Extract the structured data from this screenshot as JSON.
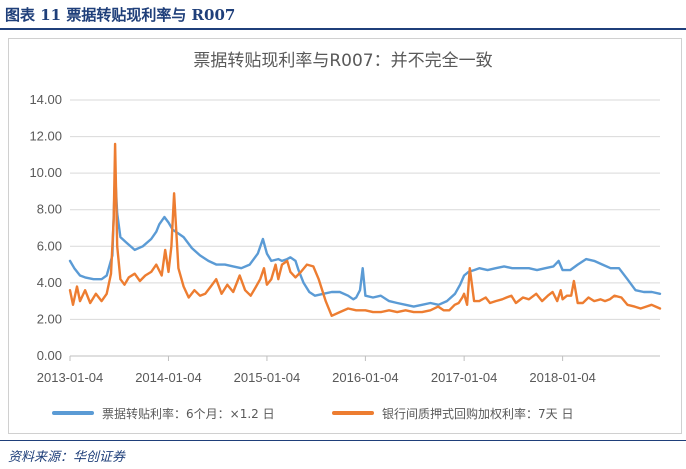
{
  "figure": {
    "title": "图表 11 票据转贴现利率与 R007",
    "source": "资料来源：华创证券"
  },
  "colors": {
    "header": "#1f3f7a",
    "series_blue": "#5b9bd5",
    "series_orange": "#ed7d31",
    "axis_text": "#595959",
    "grid": "#d9d9d9"
  },
  "chart_data": {
    "type": "line",
    "title": "票据转贴现利率与R007：并不完全一致",
    "xlabel": "",
    "ylabel": "",
    "ylim": [
      0,
      14
    ],
    "yticks": [
      "0.00",
      "2.00",
      "4.00",
      "6.00",
      "8.00",
      "10.00",
      "12.00",
      "14.00"
    ],
    "xlim": [
      "2013-01-04",
      "2018-12-31"
    ],
    "xticks": [
      "2013-01-04",
      "2014-01-04",
      "2015-01-04",
      "2016-01-04",
      "2017-01-04",
      "2018-01-04"
    ],
    "grid": "horizontal",
    "legend_position": "bottom",
    "series": [
      {
        "name": "票据转贴利率：6个月：×1.2 日",
        "color": "#5b9bd5",
        "x": [
          "2013-01-04",
          "2013-01-20",
          "2013-02-10",
          "2013-03-01",
          "2013-04-01",
          "2013-05-01",
          "2013-05-20",
          "2013-06-10",
          "2013-06-20",
          "2013-06-28",
          "2013-07-10",
          "2013-08-01",
          "2013-09-01",
          "2013-10-01",
          "2013-11-01",
          "2013-11-20",
          "2013-12-01",
          "2013-12-20",
          "2014-01-04",
          "2014-01-20",
          "2014-02-10",
          "2014-03-01",
          "2014-04-01",
          "2014-05-01",
          "2014-06-01",
          "2014-07-01",
          "2014-08-01",
          "2014-09-01",
          "2014-10-01",
          "2014-11-01",
          "2014-12-01",
          "2014-12-20",
          "2015-01-04",
          "2015-01-20",
          "2015-02-15",
          "2015-03-01",
          "2015-03-20",
          "2015-04-01",
          "2015-04-20",
          "2015-05-01",
          "2015-05-20",
          "2015-06-10",
          "2015-07-01",
          "2015-08-01",
          "2015-09-01",
          "2015-10-01",
          "2015-11-01",
          "2015-11-20",
          "2015-12-01",
          "2015-12-15",
          "2015-12-25",
          "2016-01-04",
          "2016-02-01",
          "2016-03-01",
          "2016-04-01",
          "2016-05-01",
          "2016-06-01",
          "2016-07-01",
          "2016-08-01",
          "2016-09-01",
          "2016-10-01",
          "2016-11-01",
          "2016-12-01",
          "2016-12-20",
          "2017-01-04",
          "2017-01-20",
          "2017-02-10",
          "2017-03-01",
          "2017-04-01",
          "2017-05-01",
          "2017-06-01",
          "2017-07-01",
          "2017-08-01",
          "2017-09-01",
          "2017-10-01",
          "2017-11-01",
          "2017-12-01",
          "2017-12-20",
          "2018-01-04",
          "2018-02-01",
          "2018-03-01",
          "2018-04-01",
          "2018-05-01",
          "2018-06-01",
          "2018-07-01",
          "2018-08-01",
          "2018-09-01",
          "2018-10-01",
          "2018-11-01",
          "2018-12-01",
          "2018-12-31"
        ],
        "values": [
          5.2,
          4.8,
          4.4,
          4.3,
          4.2,
          4.2,
          4.4,
          5.5,
          10.0,
          7.8,
          6.5,
          6.2,
          5.8,
          6.0,
          6.4,
          6.8,
          7.2,
          7.6,
          7.3,
          6.9,
          6.7,
          6.5,
          5.9,
          5.5,
          5.2,
          5.0,
          5.0,
          4.9,
          4.8,
          5.0,
          5.6,
          6.4,
          5.6,
          5.2,
          5.3,
          5.2,
          5.3,
          5.4,
          5.2,
          4.7,
          4.0,
          3.5,
          3.3,
          3.4,
          3.5,
          3.5,
          3.3,
          3.1,
          3.2,
          3.6,
          4.8,
          3.3,
          3.2,
          3.3,
          3.0,
          2.9,
          2.8,
          2.7,
          2.8,
          2.9,
          2.8,
          3.0,
          3.4,
          3.9,
          4.4,
          4.6,
          4.7,
          4.8,
          4.7,
          4.8,
          4.9,
          4.8,
          4.8,
          4.8,
          4.7,
          4.8,
          4.9,
          5.2,
          4.7,
          4.7,
          5.0,
          5.3,
          5.2,
          5.0,
          4.8,
          4.8,
          4.2,
          3.6,
          3.5,
          3.5,
          3.4
        ]
      },
      {
        "name": "银行间质押式回购加权利率：7天 日",
        "color": "#ed7d31",
        "x": [
          "2013-01-04",
          "2013-01-15",
          "2013-01-30",
          "2013-02-10",
          "2013-03-01",
          "2013-03-20",
          "2013-04-10",
          "2013-05-01",
          "2013-05-20",
          "2013-06-05",
          "2013-06-15",
          "2013-06-20",
          "2013-06-28",
          "2013-07-10",
          "2013-07-25",
          "2013-08-10",
          "2013-09-01",
          "2013-09-20",
          "2013-10-10",
          "2013-11-01",
          "2013-11-20",
          "2013-12-10",
          "2013-12-23",
          "2014-01-04",
          "2014-01-15",
          "2014-01-25",
          "2014-02-10",
          "2014-03-01",
          "2014-03-20",
          "2014-04-10",
          "2014-05-01",
          "2014-05-20",
          "2014-06-10",
          "2014-06-30",
          "2014-07-20",
          "2014-08-10",
          "2014-09-01",
          "2014-09-25",
          "2014-10-15",
          "2014-11-05",
          "2014-11-25",
          "2014-12-10",
          "2014-12-24",
          "2015-01-04",
          "2015-01-20",
          "2015-02-05",
          "2015-02-15",
          "2015-03-01",
          "2015-03-20",
          "2015-04-01",
          "2015-04-20",
          "2015-05-10",
          "2015-06-01",
          "2015-06-25",
          "2015-07-15",
          "2015-08-10",
          "2015-09-01",
          "2015-10-01",
          "2015-11-01",
          "2015-12-01",
          "2016-01-04",
          "2016-02-01",
          "2016-03-01",
          "2016-04-01",
          "2016-05-01",
          "2016-06-01",
          "2016-07-01",
          "2016-08-01",
          "2016-09-01",
          "2016-09-30",
          "2016-10-20",
          "2016-11-10",
          "2016-11-30",
          "2016-12-15",
          "2016-12-28",
          "2017-01-04",
          "2017-01-15",
          "2017-01-25",
          "2017-02-10",
          "2017-03-01",
          "2017-03-25",
          "2017-04-10",
          "2017-05-01",
          "2017-05-25",
          "2017-06-10",
          "2017-06-28",
          "2017-07-15",
          "2017-08-10",
          "2017-09-01",
          "2017-09-28",
          "2017-10-20",
          "2017-11-10",
          "2017-11-28",
          "2017-12-15",
          "2017-12-28",
          "2018-01-04",
          "2018-01-20",
          "2018-02-05",
          "2018-02-15",
          "2018-03-01",
          "2018-03-20",
          "2018-04-10",
          "2018-05-01",
          "2018-05-25",
          "2018-06-10",
          "2018-06-28",
          "2018-07-15",
          "2018-08-10",
          "2018-09-01",
          "2018-09-28",
          "2018-10-20",
          "2018-11-10",
          "2018-11-30",
          "2018-12-15",
          "2018-12-31"
        ],
        "values": [
          3.6,
          2.8,
          3.8,
          3.0,
          3.6,
          2.9,
          3.4,
          3.0,
          3.4,
          4.5,
          7.5,
          11.6,
          6.0,
          4.2,
          3.9,
          4.3,
          4.5,
          4.1,
          4.4,
          4.6,
          5.0,
          4.4,
          5.8,
          4.6,
          6.0,
          8.9,
          4.8,
          3.8,
          3.2,
          3.6,
          3.3,
          3.4,
          3.8,
          4.2,
          3.4,
          3.9,
          3.5,
          4.4,
          3.6,
          3.3,
          3.8,
          4.2,
          4.8,
          3.9,
          4.2,
          5.0,
          4.2,
          5.0,
          5.2,
          4.6,
          4.3,
          4.6,
          5.0,
          4.9,
          4.2,
          3.0,
          2.2,
          2.4,
          2.6,
          2.5,
          2.5,
          2.4,
          2.4,
          2.5,
          2.4,
          2.5,
          2.4,
          2.4,
          2.5,
          2.7,
          2.5,
          2.5,
          2.8,
          2.9,
          3.2,
          3.4,
          2.8,
          4.8,
          3.0,
          3.0,
          3.2,
          2.9,
          3.0,
          3.1,
          3.2,
          3.3,
          2.9,
          3.2,
          3.1,
          3.4,
          3.0,
          3.3,
          3.5,
          3.0,
          3.6,
          3.1,
          3.3,
          3.3,
          4.1,
          2.9,
          2.9,
          3.2,
          3.0,
          3.1,
          3.0,
          3.1,
          3.3,
          3.2,
          2.8,
          2.7,
          2.6,
          2.7,
          2.8,
          2.7,
          2.6
        ]
      }
    ]
  }
}
